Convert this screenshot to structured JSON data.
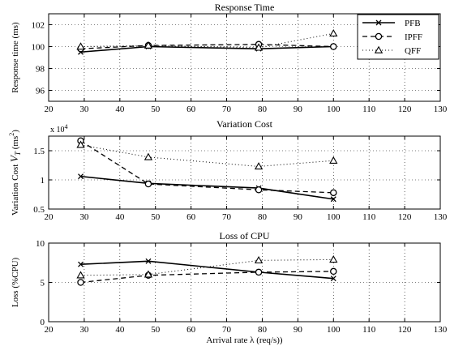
{
  "chart_data": [
    {
      "type": "line",
      "title": "Response Time",
      "xlabel": "",
      "ylabel": "Response time (ms)",
      "xlim": [
        20,
        130
      ],
      "ylim": [
        95,
        103
      ],
      "xticks": [
        20,
        30,
        40,
        50,
        60,
        70,
        80,
        90,
        100,
        110,
        120,
        130
      ],
      "yticks": [
        96,
        98,
        100,
        102
      ],
      "ytick_labels": [
        "96",
        "98",
        "100",
        "102"
      ],
      "grid": true,
      "legend": "top-right",
      "exponent_label": "",
      "series": [
        {
          "name": "PFB",
          "x": [
            29,
            48,
            79,
            100
          ],
          "y": [
            99.5,
            100.0,
            99.8,
            100.0
          ]
        },
        {
          "name": "IPFF",
          "x": [
            29,
            48,
            79,
            100
          ],
          "y": [
            99.8,
            100.1,
            100.2,
            100.0
          ]
        },
        {
          "name": "QFF",
          "x": [
            29,
            48,
            79,
            100
          ],
          "y": [
            100.0,
            100.1,
            99.9,
            101.2
          ]
        }
      ]
    },
    {
      "type": "line",
      "title": "Variation Cost",
      "xlabel": "",
      "ylabel": "Variation Cost V_T (ms^2)",
      "xlim": [
        20,
        130
      ],
      "ylim": [
        0.5,
        1.75
      ],
      "xticks": [
        20,
        30,
        40,
        50,
        60,
        70,
        80,
        90,
        100,
        110,
        120,
        130
      ],
      "yticks": [
        0.5,
        1.0,
        1.5
      ],
      "ytick_labels": [
        "0.5",
        "1",
        "1.5"
      ],
      "grid": true,
      "legend": "none",
      "exponent_label": "x 10",
      "exponent_power": "4",
      "series": [
        {
          "name": "PFB",
          "x": [
            29,
            48,
            79,
            100
          ],
          "y": [
            1.06,
            0.94,
            0.86,
            0.67
          ]
        },
        {
          "name": "IPFF",
          "x": [
            29,
            48,
            79,
            100
          ],
          "y": [
            1.67,
            0.93,
            0.83,
            0.78
          ]
        },
        {
          "name": "QFF",
          "x": [
            29,
            48,
            79,
            100
          ],
          "y": [
            1.6,
            1.39,
            1.23,
            1.33
          ]
        }
      ]
    },
    {
      "type": "line",
      "title": "Loss of CPU",
      "xlabel": "Arrival rate λ (req/s))",
      "ylabel": "Loss (%CPU)",
      "xlim": [
        20,
        130
      ],
      "ylim": [
        0,
        10
      ],
      "xticks": [
        20,
        30,
        40,
        50,
        60,
        70,
        80,
        90,
        100,
        110,
        120,
        130
      ],
      "yticks": [
        0,
        5,
        10
      ],
      "ytick_labels": [
        "0",
        "5",
        "10"
      ],
      "grid": true,
      "legend": "none",
      "exponent_label": "",
      "series": [
        {
          "name": "PFB",
          "x": [
            29,
            48,
            79,
            100
          ],
          "y": [
            7.3,
            7.7,
            6.3,
            5.5
          ]
        },
        {
          "name": "IPFF",
          "x": [
            29,
            48,
            79,
            100
          ],
          "y": [
            5.0,
            5.9,
            6.3,
            6.4
          ]
        },
        {
          "name": "QFF",
          "x": [
            29,
            48,
            79,
            100
          ],
          "y": [
            5.9,
            6.0,
            7.8,
            7.9
          ]
        }
      ]
    }
  ]
}
